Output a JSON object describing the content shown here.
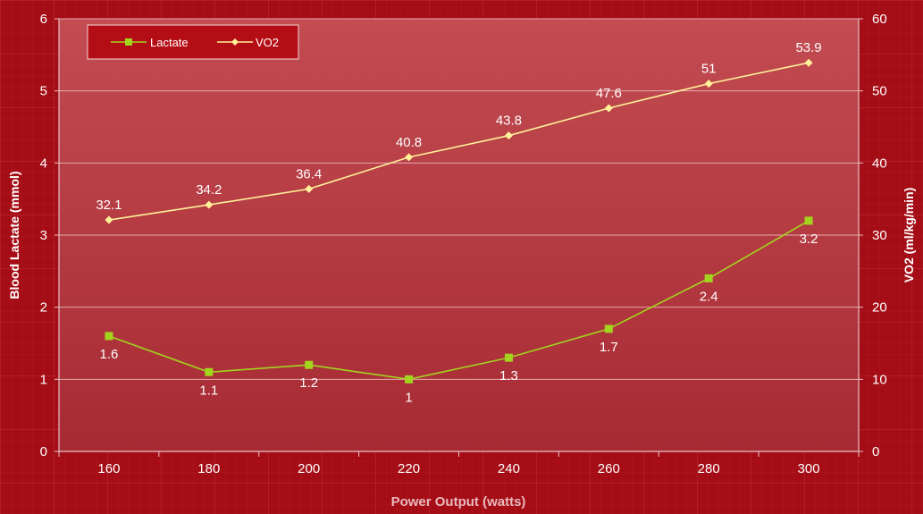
{
  "chart_data": {
    "type": "line",
    "categories": [
      "160",
      "180",
      "200",
      "220",
      "240",
      "260",
      "280",
      "300"
    ],
    "xlabel": "Power Output (watts)",
    "ylabel_left": "Blood Lactate (mmol)",
    "ylabel_right": "VO2 (ml/kg/min)",
    "ylim_left": [
      0,
      6
    ],
    "ylim_right": [
      0,
      60
    ],
    "yticks_left": [
      "0",
      "1",
      "2",
      "3",
      "4",
      "5",
      "6"
    ],
    "yticks_right": [
      "0",
      "10",
      "20",
      "30",
      "40",
      "50",
      "60"
    ],
    "grid": true,
    "legend_position": "top-left",
    "series": [
      {
        "name": "Lactate",
        "axis": "left",
        "color": "#a3d51e",
        "marker": "square",
        "values": [
          1.6,
          1.1,
          1.2,
          1,
          1.3,
          1.7,
          2.4,
          3.2
        ],
        "labels": [
          "1.6",
          "1.1",
          "1.2",
          "1",
          "1.3",
          "1.7",
          "2.4",
          "3.2"
        ]
      },
      {
        "name": "VO2",
        "axis": "right",
        "color": "#fff29a",
        "marker": "diamond",
        "values": [
          32.1,
          34.2,
          36.4,
          40.8,
          43.8,
          47.6,
          51,
          53.9
        ],
        "labels": [
          "32.1",
          "34.2",
          "36.4",
          "40.8",
          "43.8",
          "47.6",
          "51",
          "53.9"
        ]
      }
    ]
  }
}
